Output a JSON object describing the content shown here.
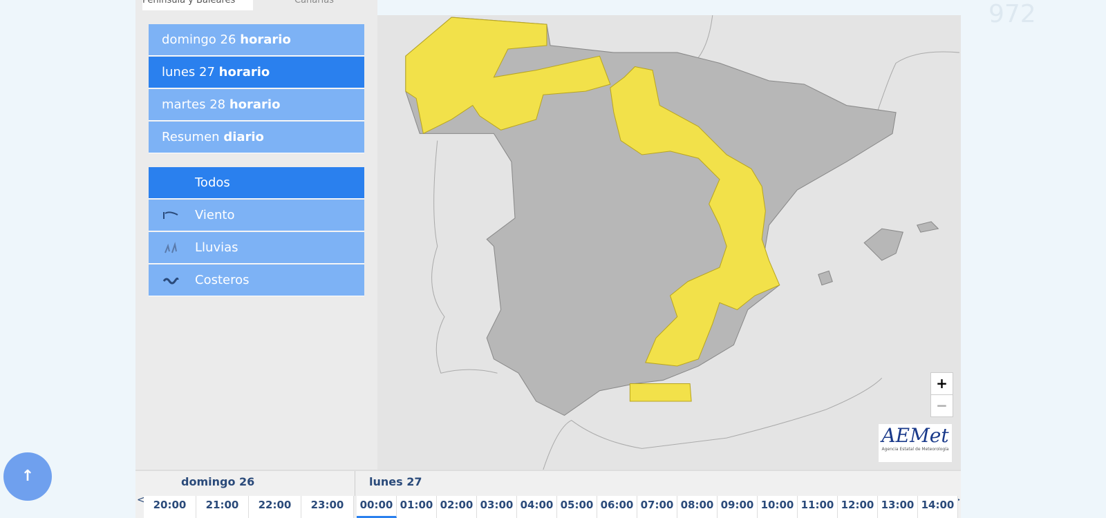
{
  "tabs": [
    "Península y Baleares",
    "Canarias"
  ],
  "days": [
    {
      "label": "domingo 26",
      "mode": "horario"
    },
    {
      "label": "lunes 27",
      "mode": "horario"
    },
    {
      "label": "martes 28",
      "mode": "horario"
    }
  ],
  "summary": {
    "label": "Resumen",
    "mode": "diario"
  },
  "filters": [
    "Todos",
    "Viento",
    "Lluvias",
    "Costeros"
  ],
  "zoom": [
    "+",
    "−"
  ],
  "logo": {
    "name": "AEMet",
    "subtitle": "Agencia Estatal de Meteorología"
  },
  "watermark": "972",
  "timeline": {
    "prev": "<",
    "next": ">",
    "days": [
      "domingo 26",
      "lunes 27"
    ],
    "hours_day1": [
      "20:00",
      "21:00",
      "22:00",
      "23:00"
    ],
    "hours_day2": [
      "00:00",
      "01:00",
      "02:00",
      "03:00",
      "04:00",
      "05:00",
      "06:00",
      "07:00",
      "08:00",
      "09:00",
      "10:00",
      "11:00",
      "12:00",
      "13:00",
      "14:00"
    ]
  }
}
